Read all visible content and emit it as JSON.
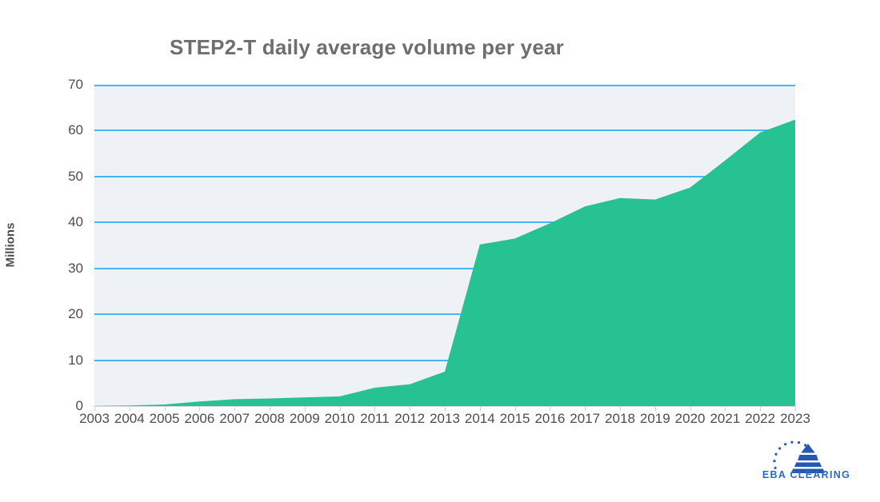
{
  "page": {
    "background": "#ffffff"
  },
  "chart_data": {
    "type": "area",
    "title": "STEP2-T daily average volume per year",
    "xlabel": "",
    "ylabel": "Millions",
    "ylim": [
      0,
      70
    ],
    "ytick_labels": [
      "0",
      "10",
      "20",
      "30",
      "40",
      "50",
      "60",
      "70"
    ],
    "grid": true,
    "legend": "none",
    "categories": [
      "2003",
      "2004",
      "2005",
      "2006",
      "2007",
      "2008",
      "2009",
      "2010",
      "2011",
      "2012",
      "2013",
      "2014",
      "2015",
      "2016",
      "2017",
      "2018",
      "2019",
      "2020",
      "2021",
      "2022",
      "2023"
    ],
    "values": [
      0.05,
      0.12,
      0.35,
      1.0,
      1.5,
      1.65,
      1.9,
      2.1,
      4.0,
      4.75,
      7.5,
      35.2,
      36.5,
      39.8,
      43.5,
      45.3,
      45.0,
      47.6,
      53.5,
      59.6,
      62.4
    ],
    "colors": {
      "area": "#26c291",
      "gridline": "#45b6ef",
      "plot_background": "#eef1f6",
      "title_text": "#6d6e71",
      "axis_text": "#4d4d4f",
      "tick_mark": "#cdd0d4",
      "baseline": "#d9dadc"
    }
  },
  "footer": {
    "logo_text": "EBA CLEARING",
    "logo_text_color": "#2e6abf",
    "logo_shape_color": "#2458b3"
  }
}
